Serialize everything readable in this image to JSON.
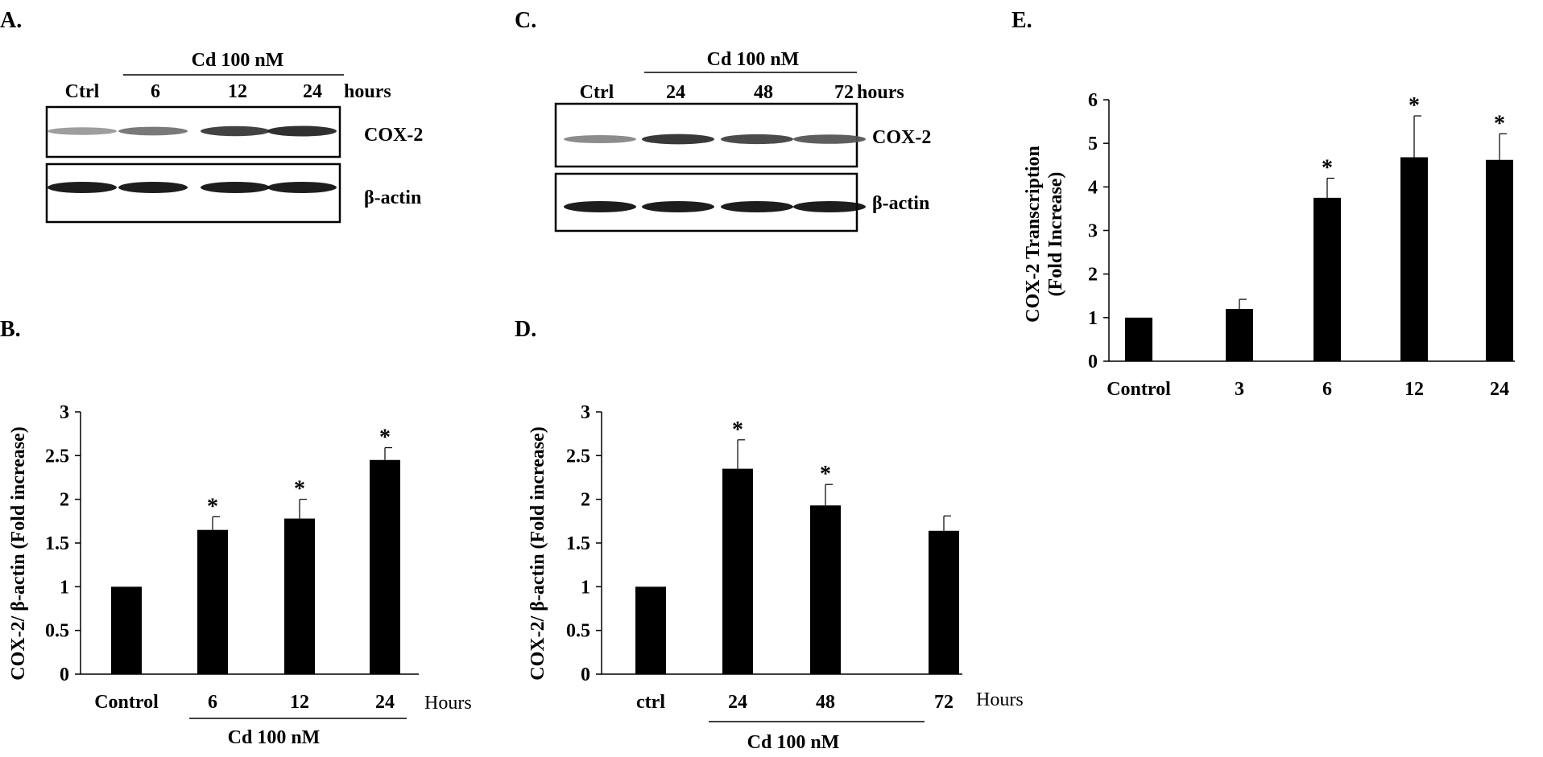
{
  "panels": {
    "a": {
      "letter": "A.",
      "treatment": "Cd 100 nM",
      "lanes": [
        "Ctrl",
        "6",
        "12",
        "24"
      ],
      "unit": "hours",
      "blots": [
        "COX-2",
        "β-actin"
      ],
      "band_intensity": {
        "COX-2": [
          0.25,
          0.45,
          0.75,
          0.85
        ],
        "β-actin": [
          0.95,
          0.95,
          0.95,
          0.95
        ]
      }
    },
    "c": {
      "letter": "C.",
      "treatment": "Cd 100 nM",
      "lanes": [
        "Ctrl",
        "24",
        "48",
        "72"
      ],
      "unit": "hours",
      "blots": [
        "COX-2",
        "β-actin"
      ],
      "band_intensity": {
        "COX-2": [
          0.35,
          0.8,
          0.7,
          0.6
        ],
        "β-actin": [
          0.95,
          0.95,
          0.95,
          0.95
        ]
      }
    },
    "b": {
      "letter": "B.",
      "unit": "Hours",
      "treatment": "Cd 100 nM"
    },
    "d": {
      "letter": "D.",
      "unit": "Hours",
      "treatment": "Cd 100 nM"
    },
    "e": {
      "letter": "E."
    }
  },
  "chart_data": [
    {
      "id": "b",
      "type": "bar",
      "categories": [
        "Control",
        "6",
        "12",
        "24"
      ],
      "values": [
        1.0,
        1.65,
        1.78,
        2.45
      ],
      "errors": [
        0,
        0.15,
        0.22,
        0.14
      ],
      "significant": [
        false,
        true,
        true,
        true
      ],
      "ylabel": "COX-2/ β-actin (Fold increase)",
      "xlabel": "",
      "ylim": [
        0,
        3
      ],
      "yticks": [
        "0",
        "0.5",
        "1",
        "1.5",
        "2",
        "2.5",
        "3"
      ],
      "yticks_values": [
        0,
        0.5,
        1,
        1.5,
        2,
        2.5,
        3
      ],
      "bar_color": "#000000"
    },
    {
      "id": "d",
      "type": "bar",
      "categories": [
        "ctrl",
        "24",
        "48",
        "72"
      ],
      "values": [
        1.0,
        2.35,
        1.93,
        1.64
      ],
      "errors": [
        0,
        0.33,
        0.24,
        0.17
      ],
      "significant": [
        false,
        true,
        true,
        false
      ],
      "ylabel": "COX-2/ β-actin (Fold increase)",
      "xlabel": "",
      "ylim": [
        0,
        3
      ],
      "yticks": [
        "0",
        "0.5",
        "1",
        "1.5",
        "2",
        "2.5",
        "3"
      ],
      "yticks_values": [
        0,
        0.5,
        1,
        1.5,
        2,
        2.5,
        3
      ],
      "bar_color": "#000000"
    },
    {
      "id": "e",
      "type": "bar",
      "categories": [
        "Control",
        "3",
        "6",
        "12",
        "24"
      ],
      "values": [
        1.0,
        1.2,
        3.75,
        4.68,
        4.62
      ],
      "errors": [
        0,
        0.22,
        0.45,
        0.95,
        0.6
      ],
      "significant": [
        false,
        false,
        true,
        true,
        true
      ],
      "ylabel": [
        "COX-2 Transcription",
        "(Fold Increase)"
      ],
      "xlabel": "",
      "ylim": [
        0,
        6
      ],
      "yticks": [
        "0",
        "1",
        "2",
        "3",
        "4",
        "5",
        "6"
      ],
      "yticks_values": [
        0,
        1,
        2,
        3,
        4,
        5,
        6
      ],
      "bar_color": "#000000"
    }
  ]
}
